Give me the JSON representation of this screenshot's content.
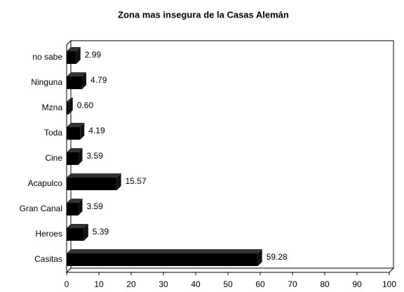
{
  "chart_data": {
    "type": "bar",
    "orientation": "horizontal",
    "title": "Zona mas insegura de la Casas Alemán",
    "categories": [
      "no sabe",
      "Ninguna",
      "Mzna",
      "Toda",
      "Cine",
      "Acapulco",
      "Gran Canal",
      "Heroes",
      "Casitas"
    ],
    "values": [
      2.99,
      4.79,
      0.6,
      4.19,
      3.59,
      15.57,
      3.59,
      5.39,
      59.28
    ],
    "value_labels": [
      "2.99",
      "4.79",
      "0.60",
      "4.19",
      "3.59",
      "15.57",
      "3.59",
      "5.39",
      "59.28"
    ],
    "color": "#000000",
    "xlim": [
      0,
      100
    ],
    "xticks": [
      0,
      10,
      20,
      30,
      40,
      50,
      60,
      70,
      80,
      90,
      100
    ]
  }
}
